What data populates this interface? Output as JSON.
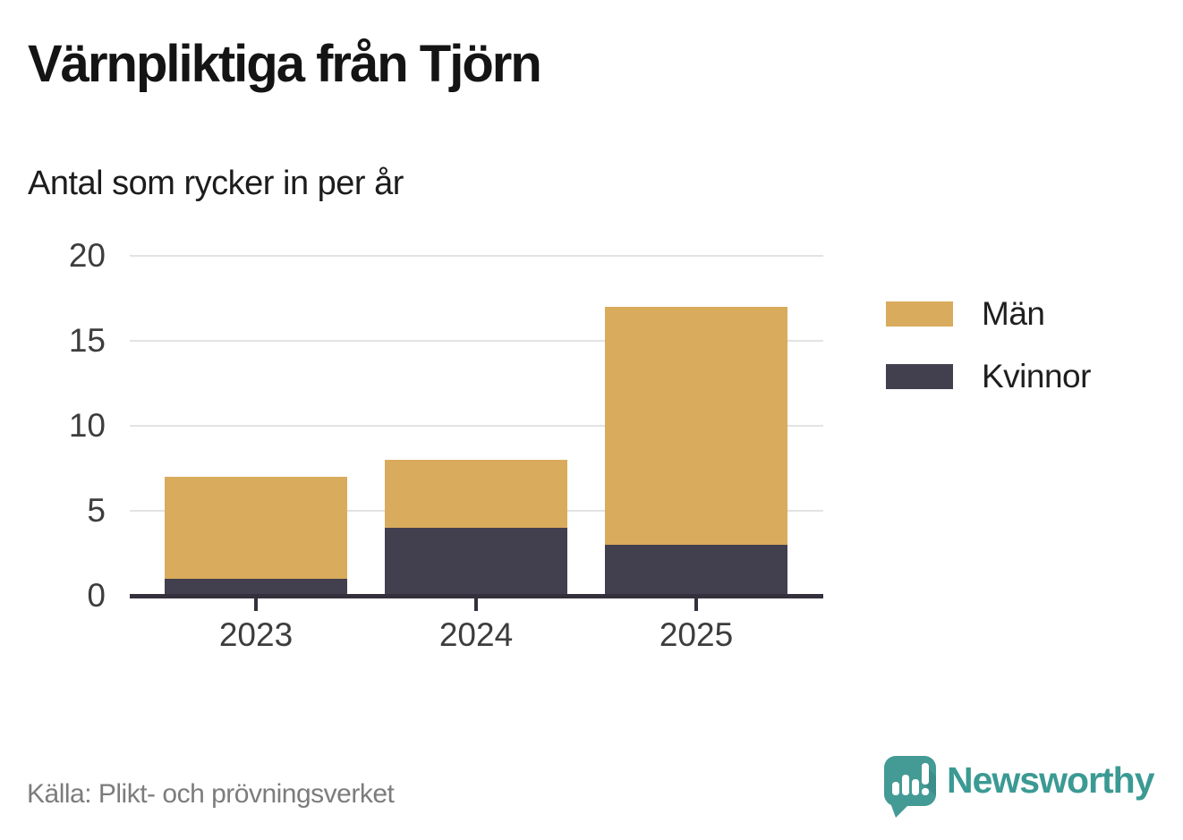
{
  "title": "Värnpliktiga från Tjörn",
  "subtitle": "Antal som rycker in per år",
  "source": "Källa: Plikt- och prövningsverket",
  "brand": {
    "name": "Newsworthy"
  },
  "colors": {
    "men": "#d9ab5c",
    "women": "#423f4f",
    "axis": "#34313d",
    "grid": "#e3e3e3",
    "brand_teal": "#3b9a93",
    "background": "#ffffff"
  },
  "legend": [
    {
      "id": "men",
      "label": "Män",
      "color": "#d9ab5c"
    },
    {
      "id": "women",
      "label": "Kvinnor",
      "color": "#423f4f"
    }
  ],
  "chart_data": {
    "type": "bar",
    "stacked": true,
    "title": "Värnpliktiga från Tjörn",
    "subtitle": "Antal som rycker in per år",
    "categories": [
      "2023",
      "2024",
      "2025"
    ],
    "series": [
      {
        "id": "men",
        "name": "Män",
        "color": "#d9ab5c",
        "values": [
          6,
          4,
          14
        ]
      },
      {
        "id": "women",
        "name": "Kvinnor",
        "color": "#423f4f",
        "values": [
          1,
          4,
          3
        ]
      }
    ],
    "totals": [
      7,
      8,
      17
    ],
    "xlabel": "",
    "ylabel": "",
    "yticks": [
      0,
      5,
      10,
      15,
      20
    ],
    "ylim": [
      0,
      20
    ],
    "grid": true,
    "legend_position": "right",
    "source": "Källa: Plikt- och prövningsverket"
  }
}
